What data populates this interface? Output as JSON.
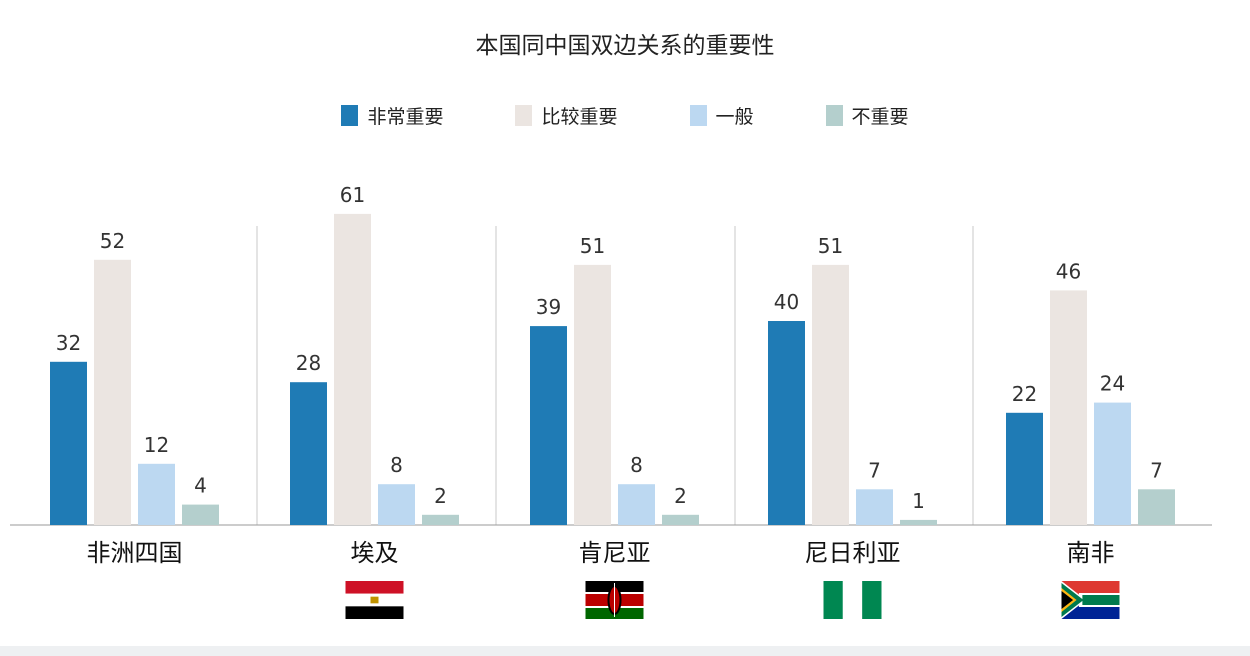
{
  "chart_data": {
    "type": "bar",
    "title": "本国同中国双边关系的重要性",
    "categories": [
      "非洲四国",
      "埃及",
      "肯尼亚",
      "尼日利亚",
      "南非"
    ],
    "series": [
      {
        "name": "非常重要",
        "color": "#1f7bb5",
        "values": [
          32,
          28,
          39,
          40,
          22
        ]
      },
      {
        "name": "比较重要",
        "color": "#ebe5e1",
        "values": [
          52,
          61,
          51,
          51,
          46
        ]
      },
      {
        "name": "一般",
        "color": "#bcd8f1",
        "values": [
          12,
          8,
          8,
          7,
          24
        ]
      },
      {
        "name": "不重要",
        "color": "#b4cfcd",
        "values": [
          4,
          2,
          2,
          1,
          7
        ]
      }
    ],
    "flags": [
      "",
      "egypt-flag",
      "kenya-flag",
      "nigeria-flag",
      "south-africa-flag"
    ],
    "grid": false,
    "legend_position": "top-center"
  }
}
